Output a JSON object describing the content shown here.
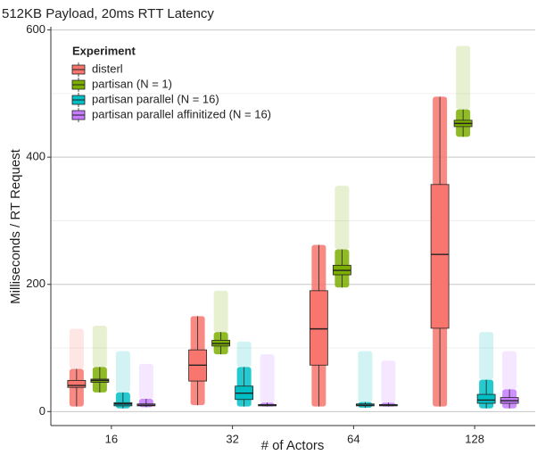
{
  "chart_data": {
    "type": "box",
    "title": "512KB Payload, 20ms RTT Latency",
    "x_label": "# of Actors",
    "y_label": "Milliseconds / RT Request",
    "legend_title": "Experiment",
    "legend_position": "top-left",
    "categories": [
      "16",
      "32",
      "64",
      "128"
    ],
    "ylim": [
      -22,
      605
    ],
    "yticks": [
      0,
      200,
      400,
      600
    ],
    "minor_yticks": [
      100,
      300,
      500
    ],
    "grid": true,
    "series": [
      {
        "name": "disterl",
        "color": "#f8766d",
        "boxes": [
          {
            "low": 8,
            "q1": 38,
            "median": 41,
            "q3": 49,
            "high": 67,
            "max": 130
          },
          {
            "low": 10,
            "q1": 48,
            "median": 73,
            "q3": 97,
            "high": 150,
            "max": 150
          },
          {
            "low": 8,
            "q1": 73,
            "median": 130,
            "q3": 190,
            "high": 262,
            "max": 262
          },
          {
            "low": 8,
            "q1": 131,
            "median": 247,
            "q3": 357,
            "high": 495,
            "max": 495
          }
        ]
      },
      {
        "name": "partisan (N = 1)",
        "color": "#7cae00",
        "boxes": [
          {
            "low": 30,
            "q1": 46,
            "median": 49,
            "q3": 51,
            "high": 70,
            "max": 135
          },
          {
            "low": 90,
            "q1": 103,
            "median": 107,
            "q3": 112,
            "high": 125,
            "max": 190
          },
          {
            "low": 195,
            "q1": 215,
            "median": 222,
            "q3": 230,
            "high": 255,
            "max": 355
          },
          {
            "low": 432,
            "q1": 448,
            "median": 453,
            "q3": 458,
            "high": 475,
            "max": 575
          }
        ]
      },
      {
        "name": "partisan parallel (N = 16)",
        "color": "#00bfc4",
        "boxes": [
          {
            "low": 5,
            "q1": 9,
            "median": 12,
            "q3": 14,
            "high": 30,
            "max": 95
          },
          {
            "low": 8,
            "q1": 19,
            "median": 29,
            "q3": 40,
            "high": 70,
            "max": 110
          },
          {
            "low": 6,
            "q1": 9,
            "median": 10,
            "q3": 12,
            "high": 15,
            "max": 95
          },
          {
            "low": 5,
            "q1": 13,
            "median": 18,
            "q3": 27,
            "high": 50,
            "max": 125
          }
        ]
      },
      {
        "name": "partisan parallel affinitized (N = 16)",
        "color": "#c77cff",
        "boxes": [
          {
            "low": 7,
            "q1": 9,
            "median": 10,
            "q3": 12,
            "high": 20,
            "max": 75
          },
          {
            "low": 8,
            "q1": 9,
            "median": 10,
            "q3": 11,
            "high": 14,
            "max": 90
          },
          {
            "low": 8,
            "q1": 9,
            "median": 10,
            "q3": 11,
            "high": 14,
            "max": 80
          },
          {
            "low": 5,
            "q1": 13,
            "median": 17,
            "q3": 22,
            "high": 35,
            "max": 95
          }
        ]
      }
    ]
  }
}
